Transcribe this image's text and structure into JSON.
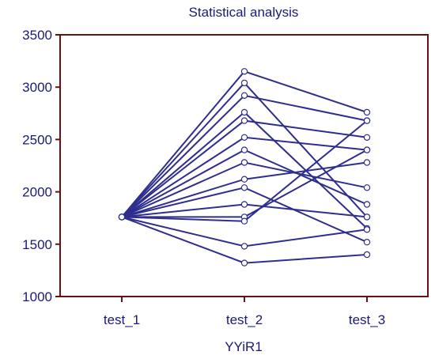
{
  "chart_data": {
    "type": "line",
    "title": "Statistical analysis",
    "xlabel": "YYiR1",
    "ylabel": "",
    "categories": [
      "test_1",
      "test_2",
      "test_3"
    ],
    "ylim": [
      1000,
      3500
    ],
    "yticks": [
      1000,
      1500,
      2000,
      2500,
      3000,
      3500
    ],
    "grid": false,
    "legend": "none",
    "colors": {
      "line": "#2e2e8f",
      "axes": "#6b1010",
      "text": "#1a1a7a",
      "marker_fill": "#ffffff"
    },
    "series": [
      {
        "values": [
          1760,
          3150,
          2760
        ]
      },
      {
        "values": [
          1760,
          3040,
          1760
        ]
      },
      {
        "values": [
          1760,
          2920,
          2680
        ]
      },
      {
        "values": [
          1760,
          2760,
          1650
        ]
      },
      {
        "values": [
          1760,
          2680,
          2520
        ]
      },
      {
        "values": [
          1760,
          2520,
          2400
        ]
      },
      {
        "values": [
          1760,
          2400,
          1880
        ]
      },
      {
        "values": [
          1760,
          2280,
          2040
        ]
      },
      {
        "values": [
          1760,
          2120,
          2280
        ]
      },
      {
        "values": [
          1760,
          2040,
          1520
        ]
      },
      {
        "values": [
          1760,
          1880,
          1760
        ]
      },
      {
        "values": [
          1760,
          1760,
          2400
        ]
      },
      {
        "values": [
          1760,
          1720,
          2680
        ]
      },
      {
        "values": [
          1760,
          1480,
          1640
        ]
      },
      {
        "values": [
          1760,
          1320,
          1400
        ]
      }
    ]
  }
}
